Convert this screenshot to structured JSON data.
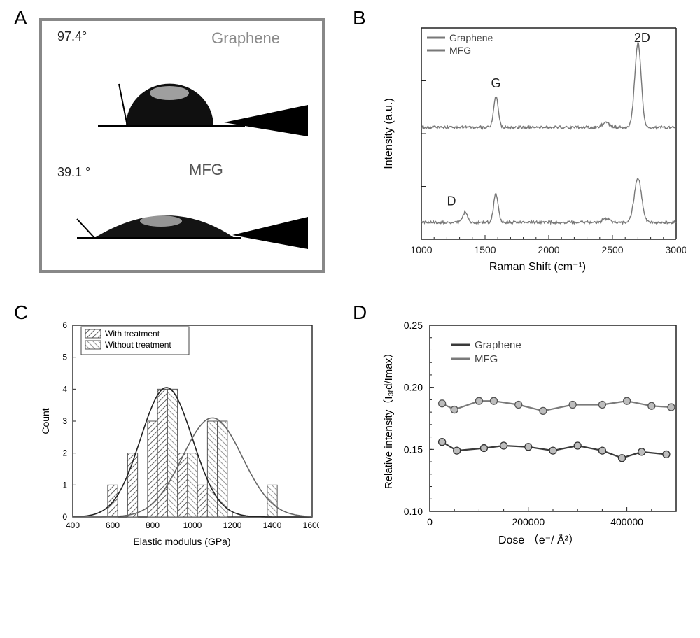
{
  "panelA": {
    "label": "A",
    "upper": {
      "angle_text": "97.4°",
      "title": "Graphene",
      "drop_shape": "hemisphere",
      "contact_angle_deg": 97.4,
      "fill": "#1a1a1a",
      "bg": "#ffffff"
    },
    "lower": {
      "angle_text": "39.1 °",
      "title": "MFG",
      "drop_shape": "flat-lens",
      "contact_angle_deg": 39.1,
      "fill": "#1a1a1a",
      "bg": "#ffffff"
    }
  },
  "panelB": {
    "label": "B",
    "type": "line",
    "x_label": "Raman Shift (cm⁻¹)",
    "y_label": "Intensity (a.u.)",
    "xlim": [
      1000,
      3000
    ],
    "xticks": [
      1000,
      1500,
      2000,
      2500,
      3000
    ],
    "series_colors": {
      "graphene": "#787878",
      "mfg": "#787878"
    },
    "legend": [
      "Graphene",
      "MFG"
    ],
    "peak_labels": [
      {
        "text": "D",
        "x": 1335,
        "panel": "lower"
      },
      {
        "text": "G",
        "x": 1585,
        "panel": "upper"
      },
      {
        "text": "2D",
        "x": 2700,
        "panel": "upper"
      }
    ],
    "graphene_peaks": [
      {
        "x": 1585,
        "height": 0.35,
        "width": 25
      },
      {
        "x": 2700,
        "height": 0.95,
        "width": 35
      }
    ],
    "graphene_minor": [
      {
        "x": 2450,
        "height": 0.05,
        "width": 40
      }
    ],
    "mfg_peaks": [
      {
        "x": 1345,
        "height": 0.12,
        "width": 25
      },
      {
        "x": 1585,
        "height": 0.32,
        "width": 25
      },
      {
        "x": 2700,
        "height": 0.5,
        "width": 40
      }
    ],
    "mfg_minor": [
      {
        "x": 2450,
        "height": 0.04,
        "width": 40
      }
    ],
    "baseline_noise_amp": 0.015,
    "background": "#ffffff",
    "axis_color": "#222222",
    "font_size": 14
  },
  "panelC": {
    "label": "C",
    "type": "histogram",
    "x_label": "Elastic modulus (GPa)",
    "y_label": "Count",
    "xlim": [
      400,
      1600
    ],
    "xticks": [
      400,
      600,
      800,
      1000,
      1200,
      1400,
      1600
    ],
    "ylim": [
      0,
      6
    ],
    "yticks": [
      0,
      1,
      2,
      3,
      4,
      5,
      6
    ],
    "legend": [
      "With treatment",
      "Without treatment"
    ],
    "bar_fill": "#ffffff",
    "bar_stroke": "#666666",
    "hatch_with": "diag-right",
    "hatch_without": "diag-left",
    "bin_width": 100,
    "with_bars": [
      {
        "x": 600,
        "c": 1
      },
      {
        "x": 700,
        "c": 2
      },
      {
        "x": 800,
        "c": 3
      },
      {
        "x": 850,
        "c": 4
      },
      {
        "x": 950,
        "c": 2
      },
      {
        "x": 1050,
        "c": 1
      }
    ],
    "without_bars": [
      {
        "x": 900,
        "c": 4
      },
      {
        "x": 1000,
        "c": 2
      },
      {
        "x": 1100,
        "c": 3
      },
      {
        "x": 1150,
        "c": 3
      },
      {
        "x": 1400,
        "c": 1
      }
    ],
    "fit_curves": {
      "with": {
        "mean": 870,
        "sd": 130,
        "amp": 4.05,
        "color": "#222222"
      },
      "without": {
        "mean": 1100,
        "sd": 150,
        "amp": 3.1,
        "color": "#666666"
      }
    },
    "background": "#ffffff",
    "axis_color": "#222222",
    "font_size": 12
  },
  "panelD": {
    "label": "D",
    "type": "scatter-line",
    "x_label": "Dose （e⁻/ Å²）",
    "y_label": "Relative intensity（I₃ᵣd/Imax）",
    "xlim": [
      0,
      500000
    ],
    "xticks": [
      0,
      200000,
      400000
    ],
    "xtick_labels": [
      "0",
      "200000",
      "400000"
    ],
    "ylim": [
      0.1,
      0.25
    ],
    "yticks": [
      0.1,
      0.15,
      0.2,
      0.25
    ],
    "legend": [
      "Graphene",
      "MFG"
    ],
    "series": {
      "mfg": {
        "color": "#7a7a7a",
        "marker_fill": "#bdbdbd",
        "marker_stroke": "#555555",
        "marker_size": 5,
        "line_width": 2.2,
        "points": [
          {
            "x": 25000,
            "y": 0.187
          },
          {
            "x": 50000,
            "y": 0.182
          },
          {
            "x": 100000,
            "y": 0.189
          },
          {
            "x": 130000,
            "y": 0.189
          },
          {
            "x": 180000,
            "y": 0.186
          },
          {
            "x": 230000,
            "y": 0.181
          },
          {
            "x": 290000,
            "y": 0.186
          },
          {
            "x": 350000,
            "y": 0.186
          },
          {
            "x": 400000,
            "y": 0.189
          },
          {
            "x": 450000,
            "y": 0.185
          },
          {
            "x": 490000,
            "y": 0.184
          }
        ]
      },
      "graphene": {
        "color": "#3a3a3a",
        "marker_fill": "#bdbdbd",
        "marker_stroke": "#333333",
        "marker_size": 5,
        "line_width": 2.2,
        "points": [
          {
            "x": 25000,
            "y": 0.156
          },
          {
            "x": 55000,
            "y": 0.149
          },
          {
            "x": 110000,
            "y": 0.151
          },
          {
            "x": 150000,
            "y": 0.153
          },
          {
            "x": 200000,
            "y": 0.152
          },
          {
            "x": 250000,
            "y": 0.149
          },
          {
            "x": 300000,
            "y": 0.153
          },
          {
            "x": 350000,
            "y": 0.149
          },
          {
            "x": 390000,
            "y": 0.143
          },
          {
            "x": 430000,
            "y": 0.148
          },
          {
            "x": 480000,
            "y": 0.146
          }
        ]
      }
    },
    "background": "#ffffff",
    "axis_color": "#222222",
    "font_size": 14
  }
}
